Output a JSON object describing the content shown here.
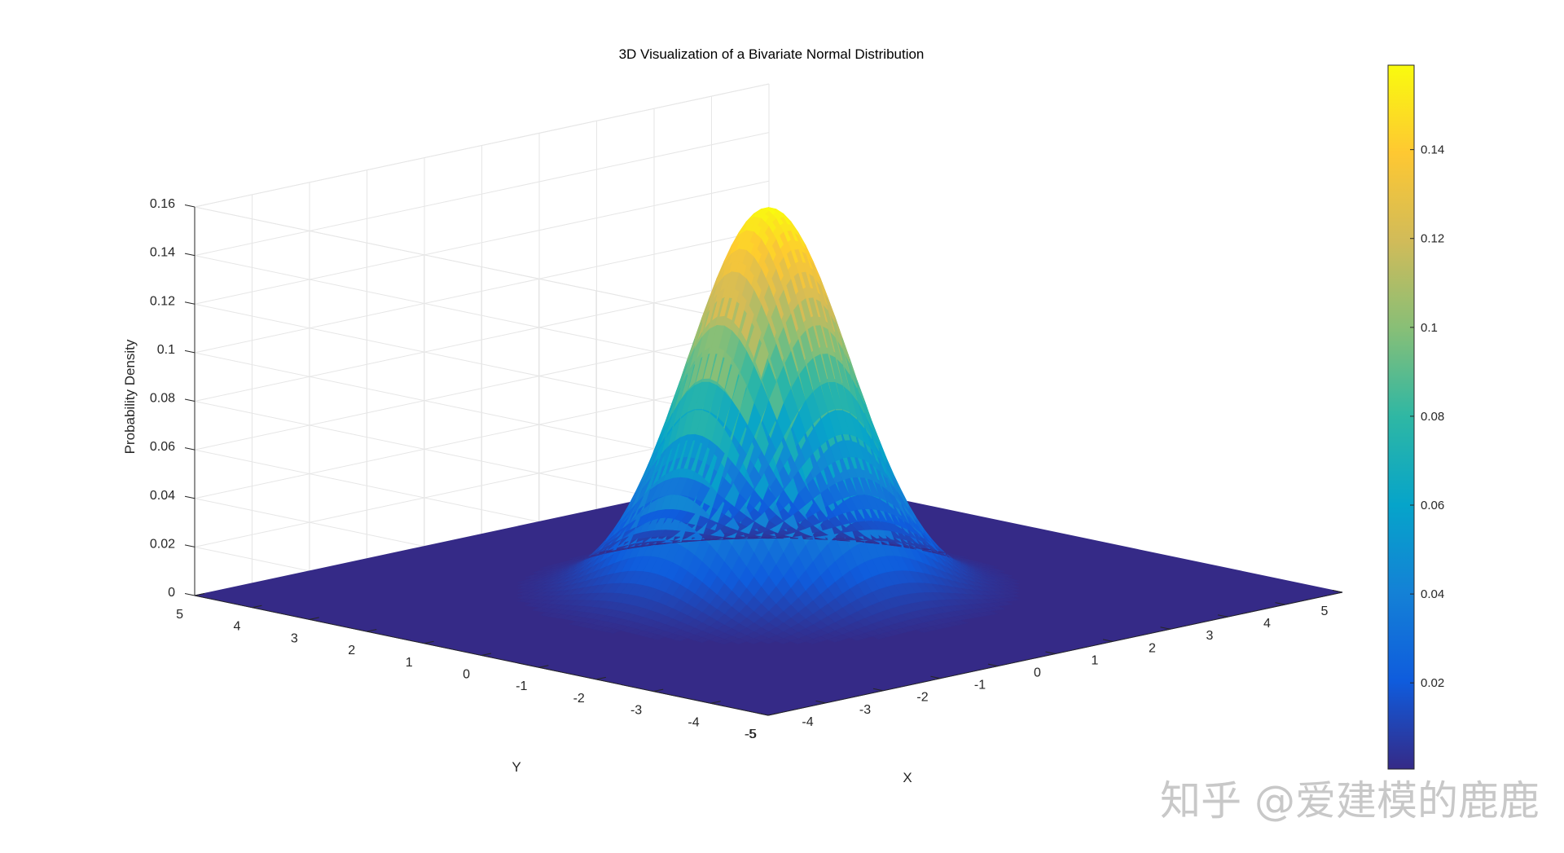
{
  "watermark": "知乎 @爱建模的鹿鹿",
  "chart_data": {
    "type": "surface",
    "title": "3D Visualization of a Bivariate Normal Distribution",
    "xlabel": "X",
    "ylabel": "Y",
    "zlabel": "Probability Density",
    "xlim": [
      -5,
      5
    ],
    "ylim": [
      -5,
      5
    ],
    "zlim": [
      0,
      0.16
    ],
    "x_ticks": [
      -5,
      -4,
      -3,
      -2,
      -1,
      0,
      1,
      2,
      3,
      4,
      5
    ],
    "y_ticks": [
      -5,
      -4,
      -3,
      -2,
      -1,
      0,
      1,
      2,
      3,
      4,
      5
    ],
    "z_ticks": [
      0,
      0.02,
      0.04,
      0.06,
      0.08,
      0.1,
      0.12,
      0.14,
      0.16
    ],
    "z_tick_labels": [
      "0",
      "0.02",
      "0.04",
      "0.06",
      "0.08",
      "0.1",
      "0.12",
      "0.14",
      "0.16"
    ],
    "distribution": {
      "mean": [
        0,
        0
      ],
      "sigma": [
        1,
        1
      ],
      "peak": 0.159
    },
    "grid": true,
    "colormap": "parula",
    "colormap_stops": [
      "#352a87",
      "#0f5cdd",
      "#1481d6",
      "#06a4ca",
      "#2eb7a4",
      "#87bf77",
      "#d1bb59",
      "#fec832",
      "#f9fb0e"
    ],
    "colorbar": {
      "position": "right",
      "range": [
        0.0006,
        0.159
      ],
      "ticks": [
        0.02,
        0.04,
        0.06,
        0.08,
        0.1,
        0.12,
        0.14
      ],
      "tick_labels": [
        "0.02",
        "0.04",
        "0.06",
        "0.08",
        "0.1",
        "0.12",
        "0.14"
      ]
    }
  }
}
